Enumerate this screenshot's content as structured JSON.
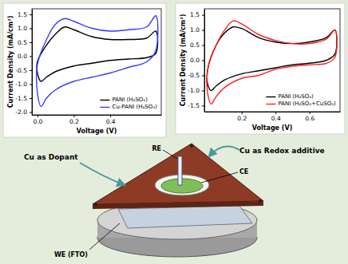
{
  "chart_data": [
    {
      "type": "line",
      "x_label": "Voltage (V)",
      "y_label": "Current Density (mA/cm²)",
      "xlim": [
        -0.03,
        0.68
      ],
      "ylim": [
        -2.1,
        1.7
      ],
      "xticks": [
        {
          "value": 0,
          "label": "0.0"
        },
        0.2,
        0.4
      ],
      "yticks": [
        {
          "value": -2,
          "label": "-2.0"
        },
        -1.5,
        {
          "value": -1,
          "label": "-1.0"
        },
        -0.5,
        {
          "value": 0,
          "label": "0.0"
        },
        0.5,
        {
          "value": 1,
          "label": "1.0"
        },
        1.5
      ],
      "legend": "lower right",
      "annotation": "Cu as Dopant",
      "series": [
        {
          "name": "PANI (H₂SO₄)",
          "color": "#000000",
          "x": [
            0.0,
            0.05,
            0.1,
            0.15,
            0.2,
            0.3,
            0.4,
            0.5,
            0.6,
            0.65,
            0.65,
            0.6,
            0.5,
            0.4,
            0.3,
            0.2,
            0.1,
            0.05,
            0.02,
            0.0
          ],
          "values": [
            -0.2,
            0.4,
            0.8,
            1.05,
            0.95,
            0.7,
            0.6,
            0.6,
            0.65,
            0.9,
            0.1,
            -0.05,
            -0.1,
            -0.15,
            -0.25,
            -0.35,
            -0.55,
            -0.75,
            -0.9,
            -0.6
          ]
        },
        {
          "name": "Cu-PANI (H₂SO₄)",
          "color": "#3a3aff",
          "x": [
            0.0,
            0.05,
            0.1,
            0.15,
            0.2,
            0.3,
            0.4,
            0.5,
            0.6,
            0.65,
            0.65,
            0.6,
            0.5,
            0.4,
            0.3,
            0.2,
            0.1,
            0.05,
            0.02,
            0.0
          ],
          "values": [
            -0.3,
            0.6,
            1.15,
            1.35,
            1.25,
            1.0,
            0.9,
            0.95,
            1.05,
            1.45,
            0.2,
            -0.2,
            -0.4,
            -0.6,
            -0.75,
            -0.9,
            -1.2,
            -1.5,
            -1.8,
            -1.3
          ]
        }
      ]
    },
    {
      "type": "line",
      "x_label": "Voltage (V)",
      "y_label": "Current Density (mA/cm²)",
      "xlim": [
        -0.02,
        0.78
      ],
      "ylim": [
        -1.7,
        1.7
      ],
      "xticks": [
        0.2,
        0.4,
        0.6
      ],
      "yticks": [
        -1.5,
        {
          "value": -1,
          "label": "-1.0"
        },
        -0.5,
        {
          "value": 0,
          "label": "0.0"
        },
        0.5,
        {
          "value": 1,
          "label": "1.0"
        },
        1.5
      ],
      "legend": "lower right",
      "annotation": "Cu as Redox additive",
      "series": [
        {
          "name": "PANI (H₂SO₄)",
          "color": "#000000",
          "x": [
            0.0,
            0.05,
            0.1,
            0.15,
            0.2,
            0.3,
            0.4,
            0.5,
            0.6,
            0.7,
            0.75,
            0.75,
            0.7,
            0.6,
            0.5,
            0.4,
            0.3,
            0.2,
            0.1,
            0.05,
            0.02,
            0.0
          ],
          "values": [
            -0.3,
            0.5,
            0.9,
            1.1,
            1.05,
            0.75,
            0.6,
            0.55,
            0.6,
            0.75,
            1.0,
            0.2,
            0.0,
            -0.1,
            -0.15,
            -0.25,
            -0.35,
            -0.45,
            -0.65,
            -0.85,
            -1.0,
            -0.8
          ]
        },
        {
          "name": "PANI (H₂SO₄+CuSO₄)",
          "color": "#ff2020",
          "x": [
            0.0,
            0.05,
            0.1,
            0.15,
            0.2,
            0.3,
            0.4,
            0.5,
            0.6,
            0.7,
            0.75,
            0.75,
            0.7,
            0.6,
            0.5,
            0.4,
            0.3,
            0.2,
            0.1,
            0.05,
            0.02,
            0.0
          ],
          "values": [
            -0.3,
            0.5,
            1.0,
            1.3,
            1.2,
            0.85,
            0.65,
            0.55,
            0.55,
            0.7,
            1.0,
            0.1,
            -0.1,
            -0.15,
            -0.2,
            -0.3,
            -0.5,
            -0.6,
            -0.9,
            -1.2,
            -1.45,
            -1.1
          ]
        }
      ]
    }
  ],
  "diagram": {
    "re_label": "RE",
    "ce_label": "CE",
    "we_label": "WE (FTO)"
  }
}
